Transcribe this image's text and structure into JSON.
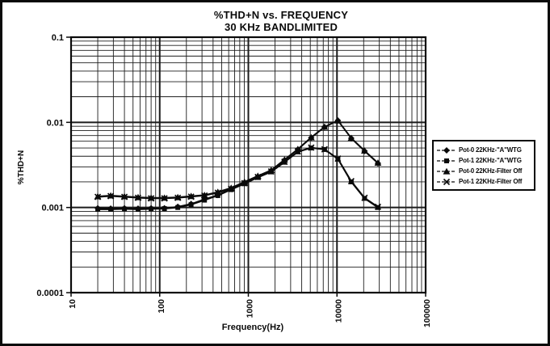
{
  "chart_data": {
    "type": "line",
    "title": "%THD+N vs. FREQUENCY",
    "subtitle": "30 KHz BANDLIMITED",
    "xlabel": "Frequency(Hz)",
    "ylabel": "%THD+N",
    "x_scale": "log",
    "y_scale": "log",
    "xlim": [
      10,
      100000
    ],
    "ylim": [
      0.0001,
      0.1
    ],
    "x_ticks": [
      "10",
      "100",
      "1000",
      "10000",
      "100000"
    ],
    "y_ticks": [
      "0.1",
      "0.01",
      "0.001",
      "0.0001"
    ],
    "grid": "log major and minor gridlines on both axes",
    "legend_position": "right",
    "line_color": "#0a0a0a",
    "x": [
      20,
      28,
      40,
      57,
      80,
      113,
      160,
      226,
      320,
      453,
      640,
      905,
      1280,
      1810,
      2560,
      3620,
      5120,
      7240,
      10240,
      14480,
      20480,
      28960
    ],
    "series": [
      {
        "name": "Pot-0 22KHz-\"A\"WTG",
        "marker": "diamond",
        "values": [
          0.00098,
          0.00097,
          0.00098,
          0.00097,
          0.00098,
          0.00098,
          0.00102,
          0.0011,
          0.00125,
          0.0014,
          0.00165,
          0.00195,
          0.0023,
          0.0027,
          0.0036,
          0.0048,
          0.0066,
          0.0088,
          0.0105,
          0.0065,
          0.0046,
          0.0033
        ]
      },
      {
        "name": "Pot-1 22KHz-\"A\"WTG",
        "marker": "square",
        "values": [
          0.00095,
          0.00095,
          0.00096,
          0.00095,
          0.00096,
          0.00097,
          0.001,
          0.00108,
          0.00122,
          0.00138,
          0.00162,
          0.0019,
          0.00225,
          0.00262,
          0.0034,
          0.0045,
          0.005,
          0.0048,
          0.0037,
          0.002,
          0.00128,
          0.001
        ]
      },
      {
        "name": "Pot-0 22KHz-Filter Off",
        "marker": "triangle",
        "values": [
          0.00135,
          0.00138,
          0.00135,
          0.00132,
          0.0013,
          0.0013,
          0.00132,
          0.00136,
          0.0014,
          0.00152,
          0.0017,
          0.002,
          0.00235,
          0.00275,
          0.00365,
          0.00485,
          0.00665,
          0.00885,
          0.0105,
          0.00655,
          0.00465,
          0.00335
        ]
      },
      {
        "name": "Pot-1 22KHz-Filter Off",
        "marker": "x",
        "values": [
          0.00133,
          0.00136,
          0.00133,
          0.0013,
          0.00128,
          0.00128,
          0.0013,
          0.00134,
          0.00138,
          0.00149,
          0.00166,
          0.00193,
          0.00228,
          0.00265,
          0.00345,
          0.00455,
          0.00505,
          0.00482,
          0.00375,
          0.00204,
          0.0013,
          0.00102
        ]
      }
    ]
  }
}
